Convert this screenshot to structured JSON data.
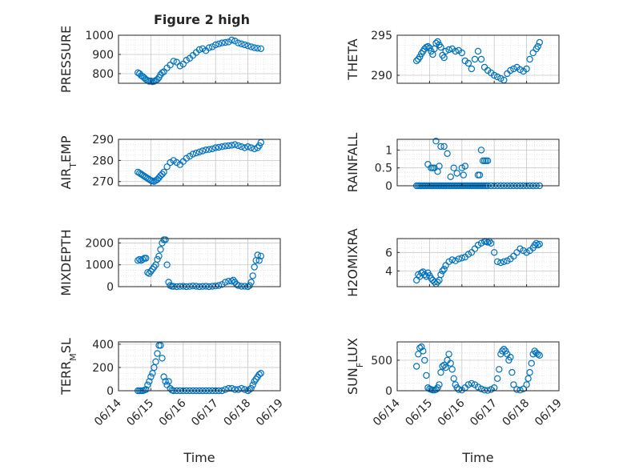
{
  "figure": {
    "title": "Figure 2 high",
    "marker_color": "#0072BD"
  },
  "x_tick_labels": [
    "06/14",
    "06/15",
    "06/16",
    "06/17",
    "06/18",
    "06/19"
  ],
  "chart_data": [
    {
      "type": "scatter",
      "name": "pressure",
      "title": "Figure 2 high",
      "xlabel": "",
      "ylabel": "PRESSURE",
      "ylim": [
        750,
        1000
      ],
      "yticks": [
        800,
        900,
        1000
      ],
      "grid": true,
      "xtick_labels_visible": false,
      "x": [
        14.6,
        14.65,
        14.7,
        14.75,
        14.8,
        14.85,
        14.9,
        14.95,
        15.0,
        15.05,
        15.1,
        15.15,
        15.2,
        15.25,
        15.3,
        15.35,
        15.4,
        15.5,
        15.6,
        15.7,
        15.8,
        15.9,
        16.0,
        16.1,
        16.2,
        16.3,
        16.4,
        16.5,
        16.6,
        16.7,
        16.8,
        16.9,
        17.0,
        17.1,
        17.2,
        17.3,
        17.4,
        17.5,
        17.6,
        17.7,
        17.8,
        17.9,
        18.0,
        18.1,
        18.2,
        18.3,
        18.4
      ],
      "y": [
        805,
        800,
        790,
        785,
        778,
        770,
        765,
        760,
        762,
        758,
        760,
        765,
        770,
        780,
        795,
        805,
        810,
        830,
        845,
        865,
        860,
        840,
        850,
        870,
        880,
        895,
        910,
        925,
        930,
        920,
        935,
        940,
        950,
        955,
        960,
        962,
        965,
        975,
        970,
        960,
        955,
        950,
        945,
        940,
        935,
        932,
        930
      ]
    },
    {
      "type": "scatter",
      "name": "theta",
      "xlabel": "",
      "ylabel": "THETA",
      "ylim": [
        289,
        295
      ],
      "yticks": [
        290,
        295
      ],
      "grid": true,
      "xtick_labels_visible": false,
      "x": [
        14.6,
        14.65,
        14.7,
        14.75,
        14.8,
        14.85,
        14.9,
        14.95,
        15.0,
        15.05,
        15.1,
        15.15,
        15.2,
        15.25,
        15.3,
        15.35,
        15.4,
        15.45,
        15.5,
        15.6,
        15.7,
        15.8,
        15.9,
        16.0,
        16.1,
        16.2,
        16.3,
        16.4,
        16.5,
        16.6,
        16.7,
        16.8,
        16.9,
        17.0,
        17.1,
        17.2,
        17.3,
        17.4,
        17.5,
        17.6,
        17.7,
        17.8,
        17.9,
        18.0,
        18.1,
        18.2,
        18.3,
        18.35,
        18.4
      ],
      "y": [
        291.8,
        292.0,
        292.3,
        292.7,
        293.0,
        293.3,
        293.5,
        293.6,
        293.4,
        293.0,
        292.6,
        293.3,
        294.0,
        294.2,
        293.8,
        293.5,
        292.5,
        292.2,
        293.0,
        293.2,
        293.3,
        293.0,
        293.1,
        292.8,
        291.8,
        291.5,
        290.8,
        292.0,
        293.0,
        292.0,
        291.0,
        290.6,
        290.3,
        290.0,
        289.8,
        289.6,
        289.4,
        290.2,
        290.6,
        290.8,
        291.0,
        290.7,
        290.5,
        290.8,
        292.0,
        292.8,
        293.3,
        293.6,
        294.1
      ]
    },
    {
      "type": "scatter",
      "name": "air_temp",
      "xlabel": "",
      "ylabel": "AIR_TEMP",
      "ylim": [
        268,
        290
      ],
      "yticks": [
        270,
        280,
        290
      ],
      "grid": true,
      "xtick_labels_visible": false,
      "x": [
        14.6,
        14.65,
        14.7,
        14.75,
        14.8,
        14.85,
        14.9,
        14.95,
        15.0,
        15.05,
        15.1,
        15.15,
        15.2,
        15.25,
        15.3,
        15.35,
        15.4,
        15.5,
        15.6,
        15.7,
        15.8,
        15.9,
        16.0,
        16.1,
        16.2,
        16.3,
        16.4,
        16.5,
        16.6,
        16.7,
        16.8,
        16.9,
        17.0,
        17.1,
        17.2,
        17.3,
        17.4,
        17.5,
        17.6,
        17.7,
        17.8,
        17.9,
        18.0,
        18.1,
        18.2,
        18.3,
        18.35,
        18.4
      ],
      "y": [
        274.5,
        274.0,
        273.5,
        273.0,
        272.5,
        272.0,
        271.5,
        271.0,
        270.5,
        270.3,
        270.0,
        270.5,
        271.0,
        271.8,
        272.8,
        273.5,
        274.5,
        277.0,
        279.0,
        280.0,
        279.0,
        278.0,
        279.5,
        281.0,
        282.0,
        283.0,
        283.5,
        284.0,
        284.5,
        285.0,
        285.2,
        285.5,
        286.0,
        286.2,
        286.5,
        286.8,
        287.0,
        287.2,
        287.5,
        287.0,
        286.5,
        286.0,
        286.5,
        286.0,
        285.5,
        286.0,
        287.0,
        288.5
      ]
    },
    {
      "type": "scatter",
      "name": "rainfall",
      "xlabel": "",
      "ylabel": "RAINFALL",
      "ylim": [
        0,
        1.3
      ],
      "yticks": [
        0,
        0.5,
        1
      ],
      "ytick_labels": [
        "0",
        "0.5",
        "1"
      ],
      "grid": true,
      "xtick_labels_visible": false,
      "x": [
        14.6,
        14.65,
        14.7,
        14.75,
        14.8,
        14.85,
        14.9,
        14.95,
        15.0,
        15.05,
        15.1,
        15.15,
        15.2,
        15.25,
        15.3,
        15.35,
        15.4,
        15.45,
        15.5,
        15.55,
        15.6,
        15.65,
        15.7,
        15.75,
        15.8,
        15.85,
        15.9,
        15.95,
        16.0,
        16.05,
        16.1,
        16.15,
        16.2,
        16.25,
        16.3,
        16.35,
        16.4,
        16.45,
        16.5,
        16.55,
        16.6,
        16.65,
        16.7,
        16.75,
        16.8,
        16.9,
        17.0,
        17.1,
        17.2,
        17.3,
        17.4,
        17.5,
        17.6,
        17.7,
        17.8,
        17.9,
        18.0,
        18.1,
        18.2,
        18.3,
        18.4,
        14.95,
        15.05,
        15.1,
        15.15,
        15.2,
        15.25,
        15.3,
        15.35,
        15.45,
        15.55,
        15.65,
        15.75,
        15.85,
        16.0,
        16.05,
        16.1,
        16.5,
        16.55,
        16.6,
        16.65,
        16.7,
        16.75,
        16.8
      ],
      "y": [
        0,
        0,
        0,
        0,
        0,
        0,
        0,
        0,
        0,
        0,
        0,
        0,
        0,
        0,
        0,
        0,
        0,
        0,
        0,
        0,
        0,
        0,
        0,
        0,
        0,
        0,
        0,
        0,
        0,
        0,
        0,
        0,
        0,
        0,
        0,
        0,
        0,
        0,
        0,
        0,
        0,
        0,
        0,
        0,
        0,
        0,
        0,
        0,
        0,
        0,
        0,
        0,
        0,
        0,
        0,
        0,
        0,
        0,
        0,
        0,
        0,
        0.6,
        0.5,
        0.5,
        0.5,
        1.25,
        0.4,
        0.55,
        1.1,
        1.1,
        0.9,
        0.25,
        0.5,
        0.35,
        0.5,
        0.3,
        0.55,
        0.3,
        0.3,
        1.0,
        0.7,
        0.7,
        0.7,
        0.7
      ]
    },
    {
      "type": "scatter",
      "name": "mixdepth",
      "xlabel": "",
      "ylabel": "MIXDEPTH",
      "ylim": [
        0,
        2200
      ],
      "yticks": [
        0,
        1000,
        2000
      ],
      "grid": true,
      "xtick_labels_visible": false,
      "x": [
        14.6,
        14.65,
        14.7,
        14.75,
        14.8,
        14.85,
        14.9,
        14.95,
        15.0,
        15.05,
        15.1,
        15.15,
        15.2,
        15.25,
        15.3,
        15.35,
        15.4,
        15.45,
        15.5,
        15.55,
        15.6,
        15.65,
        15.7,
        15.8,
        15.9,
        16.0,
        16.1,
        16.2,
        16.3,
        16.4,
        16.5,
        16.6,
        16.7,
        16.8,
        16.9,
        17.0,
        17.1,
        17.2,
        17.3,
        17.4,
        17.5,
        17.55,
        17.6,
        17.65,
        17.7,
        17.8,
        17.9,
        18.0,
        18.05,
        18.1,
        18.15,
        18.2,
        18.25,
        18.3,
        18.35,
        18.4
      ],
      "y": [
        1200,
        1250,
        1200,
        1250,
        1300,
        1300,
        650,
        600,
        700,
        800,
        900,
        1000,
        1250,
        1400,
        1700,
        2000,
        2150,
        2150,
        1000,
        200,
        50,
        20,
        10,
        0,
        10,
        20,
        0,
        10,
        30,
        20,
        0,
        10,
        20,
        0,
        20,
        30,
        50,
        100,
        200,
        250,
        250,
        300,
        200,
        100,
        50,
        20,
        20,
        0,
        50,
        200,
        500,
        900,
        1200,
        1450,
        1200,
        1400
      ]
    },
    {
      "type": "scatter",
      "name": "h2omixra",
      "xlabel": "",
      "ylabel": "H2OMIXRA",
      "ylim": [
        2.3,
        7.5
      ],
      "yticks": [
        4,
        6
      ],
      "grid": true,
      "xtick_labels_visible": false,
      "x": [
        14.6,
        14.65,
        14.7,
        14.75,
        14.8,
        14.85,
        14.9,
        14.95,
        15.0,
        15.05,
        15.1,
        15.15,
        15.2,
        15.25,
        15.3,
        15.35,
        15.4,
        15.45,
        15.5,
        15.6,
        15.7,
        15.8,
        15.9,
        16.0,
        16.1,
        16.2,
        16.3,
        16.4,
        16.5,
        16.6,
        16.7,
        16.75,
        16.8,
        16.85,
        16.9,
        17.0,
        17.1,
        17.2,
        17.3,
        17.4,
        17.5,
        17.6,
        17.7,
        17.8,
        17.9,
        18.0,
        18.1,
        18.2,
        18.25,
        18.3,
        18.35,
        18.4
      ],
      "y": [
        3.0,
        3.6,
        3.4,
        3.8,
        3.9,
        3.6,
        3.4,
        3.8,
        3.5,
        3.2,
        3.0,
        2.8,
        2.6,
        2.8,
        3.0,
        3.6,
        4.0,
        4.2,
        4.6,
        5.0,
        5.2,
        5.1,
        5.3,
        5.4,
        5.5,
        5.8,
        6.0,
        6.4,
        6.8,
        7.0,
        7.2,
        7.2,
        7.1,
        7.2,
        7.0,
        6.0,
        5.0,
        4.9,
        5.0,
        5.1,
        5.3,
        5.6,
        6.0,
        6.4,
        6.2,
        6.0,
        6.2,
        6.5,
        6.8,
        7.0,
        6.8,
        6.9
      ]
    },
    {
      "type": "scatter",
      "name": "terr_msl",
      "xlabel": "Time",
      "ylabel": "TERR_MSL",
      "ylim": [
        0,
        420
      ],
      "yticks": [
        0,
        200,
        400
      ],
      "grid": true,
      "xtick_labels_visible": true,
      "x": [
        14.6,
        14.65,
        14.7,
        14.75,
        14.8,
        14.85,
        14.9,
        14.95,
        15.0,
        15.05,
        15.1,
        15.15,
        15.2,
        15.25,
        15.3,
        15.35,
        15.4,
        15.45,
        15.5,
        15.55,
        15.6,
        15.65,
        15.7,
        15.8,
        15.9,
        16.0,
        16.1,
        16.2,
        16.3,
        16.4,
        16.5,
        16.6,
        16.7,
        16.8,
        16.9,
        17.0,
        17.1,
        17.2,
        17.3,
        17.4,
        17.5,
        17.6,
        17.7,
        17.8,
        17.9,
        18.0,
        18.05,
        18.1,
        18.15,
        18.2,
        18.25,
        18.3,
        18.35,
        18.4
      ],
      "y": [
        0,
        0,
        0,
        0,
        5,
        10,
        50,
        80,
        120,
        150,
        200,
        250,
        320,
        390,
        390,
        280,
        120,
        80,
        50,
        80,
        20,
        5,
        0,
        0,
        0,
        0,
        0,
        0,
        0,
        0,
        0,
        0,
        0,
        0,
        0,
        0,
        0,
        0,
        10,
        20,
        20,
        10,
        10,
        20,
        10,
        0,
        10,
        20,
        50,
        80,
        100,
        120,
        140,
        150
      ]
    },
    {
      "type": "scatter",
      "name": "sun_flux",
      "xlabel": "Time",
      "ylabel": "SUN_FLUX",
      "ylim": [
        0,
        800
      ],
      "yticks": [
        0,
        500
      ],
      "grid": true,
      "xtick_labels_visible": true,
      "x": [
        14.6,
        14.65,
        14.7,
        14.75,
        14.8,
        14.85,
        14.9,
        14.95,
        15.0,
        15.05,
        15.1,
        15.15,
        15.2,
        15.25,
        15.3,
        15.35,
        15.4,
        15.45,
        15.5,
        15.55,
        15.6,
        15.65,
        15.7,
        15.75,
        15.8,
        15.85,
        15.9,
        16.0,
        16.1,
        16.2,
        16.3,
        16.4,
        16.5,
        16.6,
        16.7,
        16.8,
        16.9,
        17.0,
        17.1,
        17.15,
        17.2,
        17.25,
        17.3,
        17.35,
        17.4,
        17.45,
        17.5,
        17.55,
        17.6,
        17.7,
        17.8,
        17.9,
        18.0,
        18.05,
        18.1,
        18.15,
        18.2,
        18.25,
        18.3,
        18.35,
        18.4
      ],
      "y": [
        400,
        600,
        700,
        720,
        650,
        500,
        250,
        50,
        30,
        20,
        10,
        10,
        20,
        50,
        100,
        300,
        400,
        420,
        380,
        500,
        600,
        450,
        350,
        200,
        100,
        50,
        20,
        10,
        50,
        100,
        120,
        100,
        60,
        30,
        10,
        5,
        20,
        50,
        200,
        350,
        600,
        650,
        680,
        650,
        600,
        500,
        550,
        300,
        100,
        20,
        10,
        30,
        100,
        200,
        300,
        450,
        600,
        650,
        620,
        600,
        580
      ]
    }
  ]
}
